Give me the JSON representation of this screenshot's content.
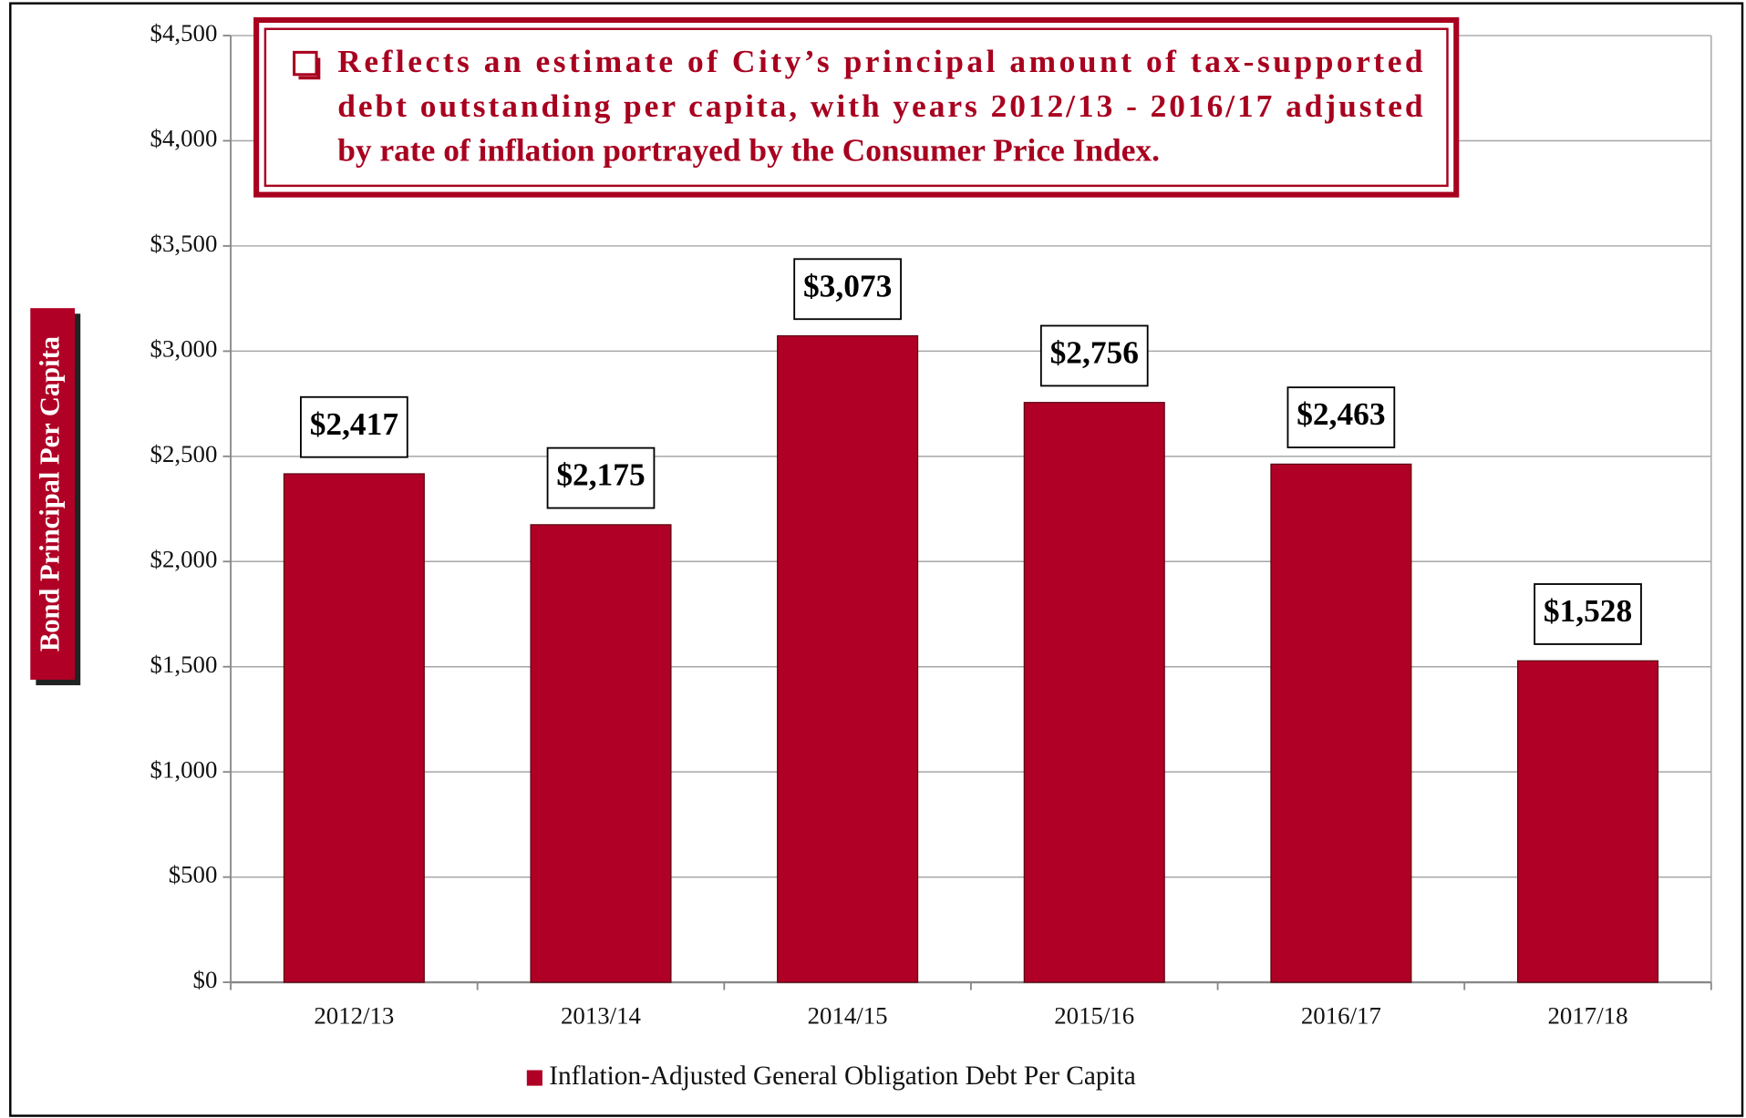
{
  "chart_data": {
    "type": "bar",
    "annotation": [
      "Reflects an estimate of City’s principal amount of tax-supported",
      "debt outstanding per capita, with years 2012/13 - 2016/17 adjusted",
      "by rate of inflation portrayed by the Consumer Price Index."
    ],
    "y_label": "Bond Principal Per Capita",
    "categories": [
      "2012/13",
      "2013/14",
      "2014/15",
      "2015/16",
      "2016/17",
      "2017/18"
    ],
    "series": [
      {
        "name": "Inflation-Adjusted General Obligation Debt Per Capita",
        "color": "#b00026",
        "values": [
          2417,
          2175,
          3073,
          2756,
          2463,
          1528
        ],
        "value_labels": [
          "$2,417",
          "$2,175",
          "$3,073",
          "$2,756",
          "$2,463",
          "$1,528"
        ]
      }
    ],
    "ylim": [
      0,
      4500
    ],
    "yticks": [
      {
        "value": 0,
        "label": "$0"
      },
      {
        "value": 500,
        "label": "$500"
      },
      {
        "value": 1000,
        "label": "$1,000"
      },
      {
        "value": 1500,
        "label": "$1,500"
      },
      {
        "value": 2000,
        "label": "$2,000"
      },
      {
        "value": 2500,
        "label": "$2,500"
      },
      {
        "value": 3000,
        "label": "$3,000"
      },
      {
        "value": 3500,
        "label": "$3,500"
      },
      {
        "value": 4000,
        "label": "$4,000"
      },
      {
        "value": 4500,
        "label": "$4,500"
      }
    ],
    "grid": true,
    "legend": "bottom"
  }
}
